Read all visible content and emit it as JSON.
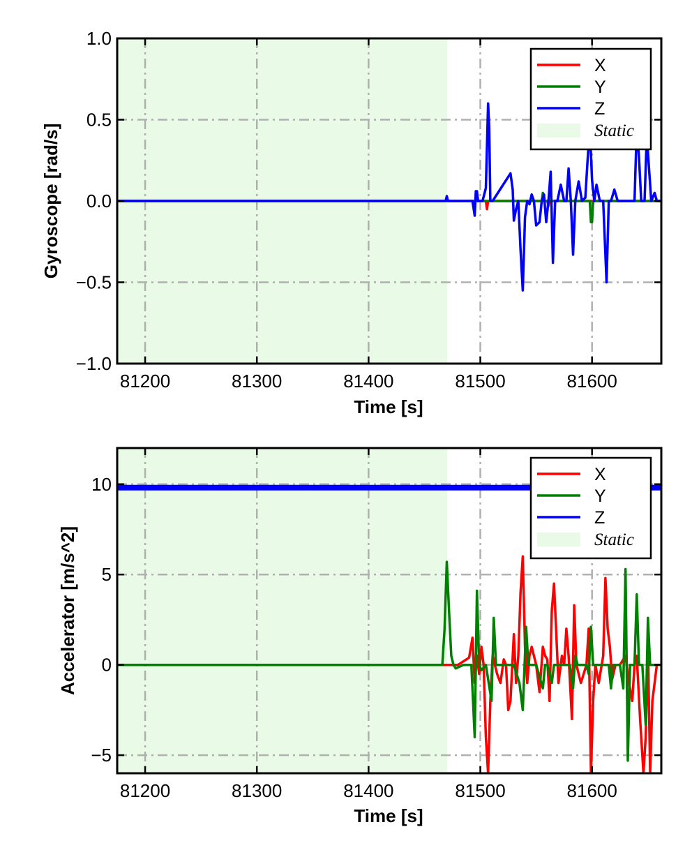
{
  "chart_data": [
    {
      "type": "line",
      "ylabel": "Gyroscope [rad/s]",
      "xlabel": "Time [s]",
      "xlim": [
        81175,
        81662
      ],
      "ylim": [
        -1.0,
        1.0
      ],
      "xticks": [
        81200,
        81300,
        81400,
        81500,
        81600
      ],
      "yticks": [
        -1.0,
        -0.5,
        0.0,
        0.5,
        1.0
      ],
      "xtick_labels": [
        "81200",
        "81300",
        "81400",
        "81500",
        "81600"
      ],
      "ytick_labels": [
        "−1.0",
        "−0.5",
        "0.0",
        "0.5",
        "1.0"
      ],
      "grid": true,
      "legend_position": "top-right",
      "static_region": {
        "label": "Static",
        "x": [
          81175,
          81470
        ],
        "color": "#e9fbe6"
      },
      "series": [
        {
          "name": "X",
          "color": "#ff0000",
          "x": [
            81175,
            81470,
            81505,
            81506,
            81507,
            81508,
            81560,
            81561,
            81562,
            81662
          ],
          "y": [
            0.0,
            0.0,
            0.0,
            -0.05,
            0.0,
            0.0,
            0.0,
            -0.03,
            0.0,
            0.0
          ]
        },
        {
          "name": "Y",
          "color": "#008000",
          "x": [
            81175,
            81470,
            81555,
            81556,
            81557,
            81598,
            81599,
            81600,
            81601,
            81662
          ],
          "y": [
            0.0,
            0.0,
            0.0,
            0.05,
            0.0,
            0.0,
            -0.13,
            -0.13,
            0.0,
            0.0
          ]
        },
        {
          "name": "Z",
          "color": "#0000ff",
          "x": [
            81175,
            81469,
            81470,
            81471,
            81493,
            81495,
            81496,
            81497,
            81498,
            81502,
            81505,
            81507,
            81508,
            81509,
            81511,
            81527,
            81529,
            81530,
            81532,
            81534,
            81536,
            81538,
            81540,
            81542,
            81544,
            81546,
            81548,
            81550,
            81553,
            81555,
            81557,
            81559,
            81561,
            81563,
            81565,
            81567,
            81569,
            81572,
            81575,
            81577,
            81579,
            81581,
            81583,
            81585,
            81588,
            81591,
            81594,
            81596,
            81598,
            81600,
            81602,
            81604,
            81607,
            81610,
            81613,
            81615,
            81617,
            81620,
            81623,
            81638,
            81640,
            81642,
            81644,
            81647,
            81649,
            81651,
            81653,
            81656,
            81658,
            81660,
            81662
          ],
          "y": [
            0.0,
            0.0,
            0.03,
            0.0,
            0.0,
            -0.09,
            0.06,
            0.06,
            0.0,
            0.0,
            0.08,
            0.6,
            0.45,
            0.0,
            0.0,
            0.17,
            0.07,
            -0.12,
            -0.05,
            0.0,
            -0.3,
            -0.55,
            -0.1,
            0.0,
            -0.02,
            0.04,
            0.0,
            -0.15,
            -0.13,
            0.0,
            0.04,
            -0.13,
            0.0,
            0.18,
            -0.38,
            0.0,
            0.0,
            0.1,
            0.0,
            0.0,
            0.2,
            0.0,
            -0.33,
            0.0,
            0.12,
            0.0,
            0.02,
            0.25,
            0.45,
            0.13,
            0.0,
            0.1,
            0.0,
            0.0,
            -0.5,
            0.0,
            0.0,
            0.07,
            0.0,
            0.0,
            0.45,
            0.27,
            0.0,
            0.0,
            0.4,
            0.2,
            0.0,
            0.05,
            0.0,
            0.0,
            0.0
          ]
        }
      ]
    },
    {
      "type": "line",
      "ylabel": "Accelerator [m/s^2]",
      "xlabel": "Time [s]",
      "xlim": [
        81175,
        81662
      ],
      "ylim": [
        -6,
        12
      ],
      "xticks": [
        81200,
        81300,
        81400,
        81500,
        81600
      ],
      "yticks": [
        -5,
        0,
        5,
        10
      ],
      "xtick_labels": [
        "81200",
        "81300",
        "81400",
        "81500",
        "81600"
      ],
      "ytick_labels": [
        "−5",
        "0",
        "5",
        "10"
      ],
      "grid": true,
      "legend_position": "top-right",
      "static_region": {
        "label": "Static",
        "x": [
          81175,
          81470
        ],
        "color": "#e9fbe6"
      },
      "series": [
        {
          "name": "X",
          "color": "#ff0000",
          "x": [
            81175,
            81480,
            81490,
            81493,
            81495,
            81497,
            81499,
            81501,
            81503,
            81505,
            81507,
            81509,
            81511,
            81515,
            81518,
            81521,
            81523,
            81525,
            81527,
            81530,
            81532,
            81534,
            81536,
            81538,
            81540,
            81542,
            81544,
            81546,
            81550,
            81553,
            81556,
            81558,
            81560,
            81562,
            81564,
            81566,
            81570,
            81573,
            81575,
            81577,
            81579,
            81582,
            81584,
            81586,
            81590,
            81595,
            81597,
            81599,
            81601,
            81603,
            81606,
            81610,
            81612,
            81614,
            81616,
            81618,
            81621,
            81625,
            81630,
            81633,
            81636,
            81638,
            81640,
            81643,
            81646,
            81648,
            81650,
            81652,
            81654,
            81656,
            81658,
            81660,
            81662
          ],
          "y": [
            0.0,
            0.0,
            0.4,
            1.5,
            -1.0,
            0.5,
            -0.5,
            1.0,
            0.0,
            -4.0,
            -6.0,
            -2.0,
            0.5,
            -0.5,
            -1.0,
            0.3,
            0.0,
            -2.5,
            -2.0,
            1.7,
            -1.0,
            0.5,
            4.0,
            6.0,
            1.0,
            -1.0,
            0.5,
            1.0,
            0.0,
            -1.5,
            1.0,
            0.5,
            0.3,
            -2.0,
            3.0,
            4.5,
            -1.0,
            0.5,
            0.0,
            2.0,
            0.5,
            -3.0,
            3.3,
            0.0,
            -1.0,
            0.0,
            2.0,
            -6.0,
            -2.0,
            0.0,
            -1.0,
            0.5,
            4.8,
            2.0,
            1.0,
            -0.8,
            0.0,
            0.0,
            0.5,
            -1.0,
            -2.0,
            0.0,
            0.5,
            -3.0,
            -6.0,
            -4.0,
            1.0,
            -6.0,
            -2.0,
            -1.0,
            0.0,
            0.0,
            0.0
          ]
        },
        {
          "name": "Y",
          "color": "#008000",
          "x": [
            81175,
            81466,
            81468,
            81470,
            81472,
            81474,
            81476,
            81478,
            81485,
            81492,
            81495,
            81497,
            81499,
            81501,
            81505,
            81510,
            81512,
            81514,
            81520,
            81530,
            81535,
            81538,
            81541,
            81543,
            81545,
            81550,
            81556,
            81558,
            81560,
            81564,
            81566,
            81568,
            81580,
            81583,
            81585,
            81587,
            81595,
            81597,
            81599,
            81601,
            81603,
            81615,
            81617,
            81619,
            81625,
            81628,
            81630,
            81632,
            81634,
            81638,
            81640,
            81642,
            81645,
            81648,
            81650,
            81652,
            81654,
            81660,
            81662
          ],
          "y": [
            0.0,
            0.0,
            2.0,
            5.7,
            3.0,
            0.5,
            0.0,
            -0.2,
            0.0,
            0.0,
            -4.0,
            4.1,
            0.0,
            -0.3,
            0.0,
            -2.0,
            2.6,
            0.0,
            0.0,
            0.0,
            -1.0,
            -2.5,
            2.1,
            0.0,
            0.0,
            0.0,
            -1.3,
            0.0,
            0.0,
            -1.0,
            0.0,
            0.0,
            0.0,
            -1.3,
            0.5,
            0.0,
            0.0,
            -0.5,
            2.1,
            0.0,
            0.0,
            0.0,
            -1.3,
            0.0,
            0.0,
            -1.3,
            5.3,
            -5.3,
            0.0,
            0.0,
            3.9,
            0.0,
            0.0,
            -3.3,
            2.6,
            0.0,
            0.0,
            0.0,
            0.0
          ]
        },
        {
          "name": "Z",
          "color": "#0000ff",
          "x": [
            81175,
            81662
          ],
          "y": [
            9.81,
            9.81
          ]
        }
      ]
    }
  ]
}
